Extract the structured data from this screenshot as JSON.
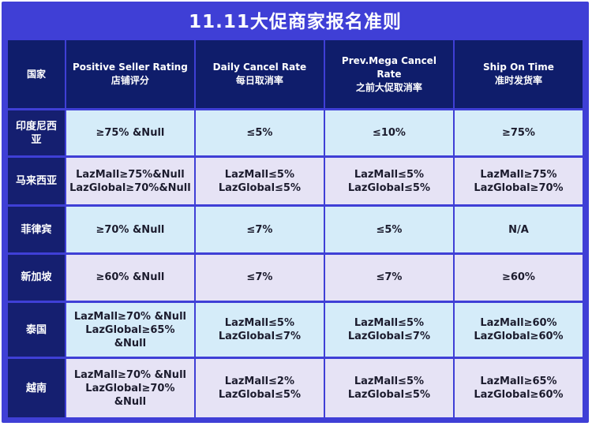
{
  "title": "11.11大促商家报名准则",
  "headers": [
    {
      "en": "国家",
      "cn": ""
    },
    {
      "en": "Positive Seller Rating",
      "cn": "店铺评分"
    },
    {
      "en": "Daily Cancel Rate",
      "cn": "每日取消率"
    },
    {
      "en": "Prev.Mega Cancel Rate",
      "cn": "之前大促取消率"
    },
    {
      "en": "Ship On Time",
      "cn": "准时发货率"
    }
  ],
  "rows": [
    {
      "country": "印度尼西亚",
      "cells": [
        [
          "≥75% &Null"
        ],
        [
          "≤5%"
        ],
        [
          "≤10%"
        ],
        [
          "≥75%"
        ]
      ]
    },
    {
      "country": "马来西亚",
      "cells": [
        [
          "LazMall≥75%&Null",
          "LazGlobal≥70%&Null"
        ],
        [
          "LazMall≤5%",
          "LazGlobal≤5%"
        ],
        [
          "LazMall≤5%",
          "LazGlobal≤5%"
        ],
        [
          "LazMall≥75%",
          "LazGlobal≥70%"
        ]
      ]
    },
    {
      "country": "菲律宾",
      "cells": [
        [
          "≥70% &Null"
        ],
        [
          "≤7%"
        ],
        [
          "≤5%"
        ],
        [
          "N/A"
        ]
      ]
    },
    {
      "country": "新加坡",
      "cells": [
        [
          "≥60% &Null"
        ],
        [
          "≤7%"
        ],
        [
          "≤7%"
        ],
        [
          "≥60%"
        ]
      ]
    },
    {
      "country": "泰国",
      "cells": [
        [
          "LazMall≥70% &Null",
          "LazGlobal≥65% &Null"
        ],
        [
          "LazMall≤5%",
          "LazGlobal≤7%"
        ],
        [
          "LazMall≤5%",
          "LazGlobal≤7%"
        ],
        [
          "LazMall≥60%",
          "LazGlobal≥60%"
        ]
      ]
    },
    {
      "country": "越南",
      "cells": [
        [
          "LazMall≥70% &Null",
          "LazGlobal≥70% &Null"
        ],
        [
          "LazMall≤2%",
          "LazGlobal≤5%"
        ],
        [
          "LazMall≤5%",
          "LazGlobal≤5%"
        ],
        [
          "LazMall≥65%",
          "LazGlobal≥60%"
        ]
      ]
    }
  ]
}
